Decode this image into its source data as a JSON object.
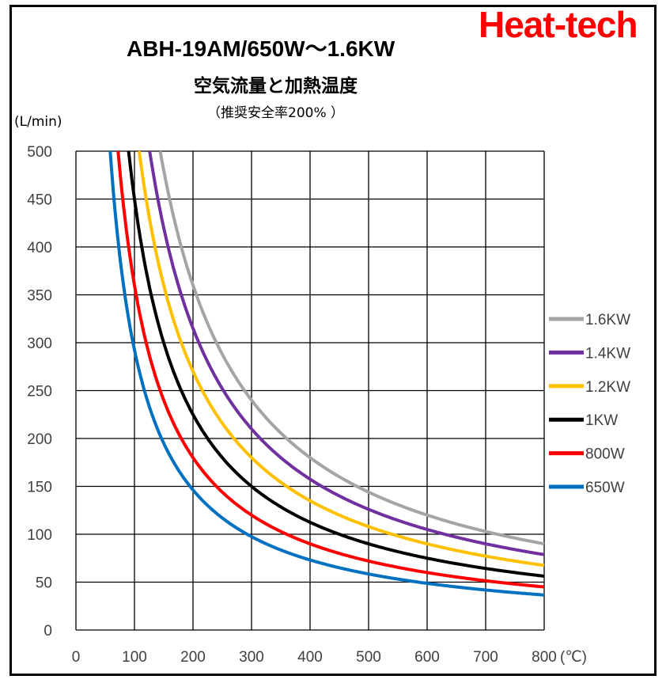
{
  "brand": "Heat-tech",
  "colors": {
    "brand": "#ff0000",
    "grid": "#000000"
  },
  "chart_data": {
    "type": "line",
    "title": "ABH-19AM/650W～1.6KW",
    "subtitle": "空気流量と加熱温度",
    "note": "（推奨安全率200% ）",
    "ylabel": "(L/min)",
    "xlabel": "(℃)",
    "xlim": [
      0,
      800
    ],
    "ylim": [
      0,
      500
    ],
    "xticks": [
      "0",
      "100",
      "200",
      "300",
      "400",
      "500",
      "600",
      "700",
      "800"
    ],
    "yticks": [
      "0",
      "50",
      "100",
      "150",
      "200",
      "250",
      "300",
      "350",
      "400",
      "450",
      "500"
    ],
    "grid": true,
    "legend_position": "right",
    "series": [
      {
        "name": "1.6KW",
        "color": "#a5a5a5",
        "k": 72000,
        "points": [
          [
            144,
            500
          ],
          [
            150,
            480
          ],
          [
            175,
            411
          ],
          [
            200,
            360
          ],
          [
            250,
            288
          ],
          [
            300,
            240
          ],
          [
            350,
            206
          ],
          [
            400,
            180
          ],
          [
            450,
            160
          ],
          [
            500,
            144
          ],
          [
            550,
            131
          ],
          [
            600,
            120
          ],
          [
            650,
            111
          ],
          [
            700,
            103
          ],
          [
            750,
            96
          ],
          [
            800,
            90
          ]
        ]
      },
      {
        "name": "1.4KW",
        "color": "#7030a0",
        "k": 63000,
        "points": [
          [
            126,
            500
          ],
          [
            140,
            450
          ],
          [
            160,
            394
          ],
          [
            200,
            315
          ],
          [
            250,
            252
          ],
          [
            300,
            210
          ],
          [
            350,
            180
          ],
          [
            400,
            158
          ],
          [
            450,
            140
          ],
          [
            500,
            126
          ],
          [
            550,
            115
          ],
          [
            600,
            105
          ],
          [
            650,
            97
          ],
          [
            700,
            90
          ],
          [
            750,
            84
          ],
          [
            800,
            79
          ]
        ]
      },
      {
        "name": "1.2KW",
        "color": "#ffc000",
        "k": 54000,
        "points": [
          [
            108,
            500
          ],
          [
            120,
            450
          ],
          [
            140,
            386
          ],
          [
            170,
            318
          ],
          [
            200,
            270
          ],
          [
            250,
            216
          ],
          [
            300,
            180
          ],
          [
            350,
            154
          ],
          [
            400,
            135
          ],
          [
            450,
            120
          ],
          [
            500,
            108
          ],
          [
            550,
            98
          ],
          [
            600,
            90
          ],
          [
            650,
            83
          ],
          [
            700,
            77
          ],
          [
            750,
            72
          ],
          [
            800,
            68
          ]
        ]
      },
      {
        "name": "1KW",
        "color": "#000000",
        "k": 45000,
        "points": [
          [
            90,
            500
          ],
          [
            100,
            450
          ],
          [
            120,
            375
          ],
          [
            150,
            300
          ],
          [
            200,
            225
          ],
          [
            250,
            180
          ],
          [
            300,
            150
          ],
          [
            350,
            129
          ],
          [
            400,
            113
          ],
          [
            450,
            100
          ],
          [
            500,
            90
          ],
          [
            550,
            82
          ],
          [
            600,
            75
          ],
          [
            650,
            69
          ],
          [
            700,
            64
          ],
          [
            750,
            60
          ],
          [
            800,
            56
          ]
        ]
      },
      {
        "name": "800W",
        "color": "#ff0000",
        "k": 36000,
        "points": [
          [
            72,
            500
          ],
          [
            80,
            450
          ],
          [
            100,
            360
          ],
          [
            125,
            288
          ],
          [
            150,
            240
          ],
          [
            200,
            180
          ],
          [
            250,
            144
          ],
          [
            300,
            120
          ],
          [
            350,
            103
          ],
          [
            400,
            90
          ],
          [
            450,
            80
          ],
          [
            500,
            72
          ],
          [
            550,
            65
          ],
          [
            600,
            60
          ],
          [
            650,
            55
          ],
          [
            700,
            51
          ],
          [
            750,
            48
          ],
          [
            800,
            45
          ]
        ]
      },
      {
        "name": "650W",
        "color": "#0070c0",
        "k": 29250,
        "points": [
          [
            58,
            500
          ],
          [
            65,
            450
          ],
          [
            80,
            366
          ],
          [
            100,
            293
          ],
          [
            125,
            234
          ],
          [
            150,
            195
          ],
          [
            200,
            146
          ],
          [
            250,
            117
          ],
          [
            300,
            98
          ],
          [
            350,
            84
          ],
          [
            400,
            73
          ],
          [
            450,
            65
          ],
          [
            500,
            59
          ],
          [
            550,
            53
          ],
          [
            600,
            49
          ],
          [
            650,
            45
          ],
          [
            700,
            42
          ],
          [
            750,
            39
          ],
          [
            800,
            37
          ]
        ]
      }
    ]
  }
}
